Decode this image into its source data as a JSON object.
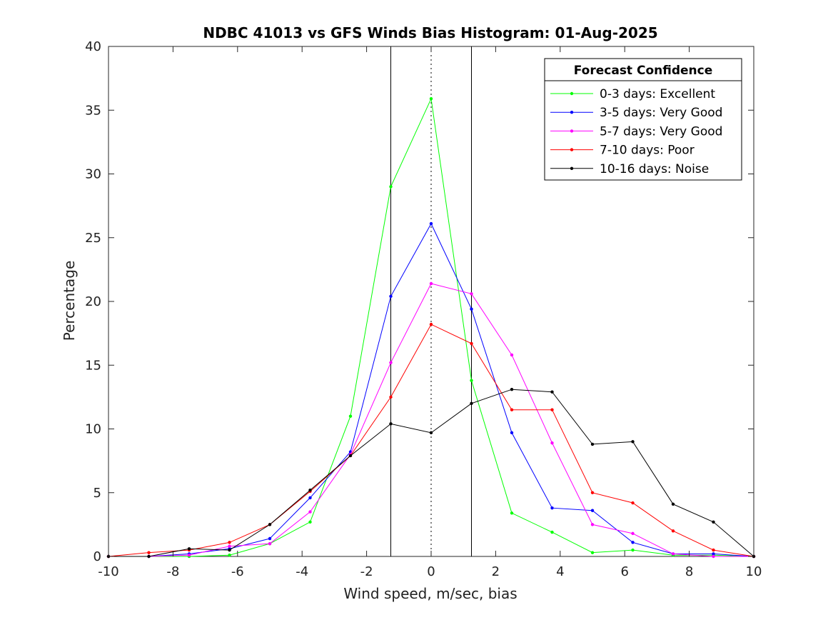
{
  "chart_data": {
    "type": "line",
    "title": "NDBC 41013 vs GFS Winds Bias Histogram: 01-Aug-2025",
    "xlabel": "Wind speed, m/sec, bias",
    "ylabel": "Percentage",
    "xlim": [
      -10,
      10
    ],
    "ylim": [
      0,
      40
    ],
    "xticks": [
      -10,
      -8,
      -6,
      -4,
      -2,
      0,
      2,
      4,
      6,
      8,
      10
    ],
    "yticks": [
      0,
      5,
      10,
      15,
      20,
      25,
      30,
      35,
      40
    ],
    "grid": false,
    "legend": {
      "title": "Forecast Confidence",
      "placement": "top-right"
    },
    "reference_lines": [
      {
        "x": -1.25,
        "style": "solid"
      },
      {
        "x": 0,
        "style": "dotted"
      },
      {
        "x": 1.25,
        "style": "solid"
      }
    ],
    "x": [
      -10,
      -8.75,
      -7.5,
      -6.25,
      -5,
      -3.75,
      -2.5,
      -1.25,
      0,
      1.25,
      2.5,
      3.75,
      5,
      6.25,
      7.5,
      8.75,
      10
    ],
    "series": [
      {
        "name": "0-3 days: Excellent",
        "color": "#00ff00",
        "values": [
          0,
          0,
          0,
          0.1,
          1.0,
          2.7,
          11.0,
          29.0,
          35.9,
          13.8,
          3.4,
          1.9,
          0.3,
          0.5,
          0.1,
          0.1,
          0
        ]
      },
      {
        "name": "3-5 days: Very Good",
        "color": "#0000ff",
        "values": [
          0,
          0,
          0.2,
          0.6,
          1.4,
          4.6,
          8.2,
          20.4,
          26.1,
          19.4,
          9.7,
          3.8,
          3.6,
          1.1,
          0.2,
          0.2,
          0
        ]
      },
      {
        "name": "5-7 days: Very Good",
        "color": "#ff00ff",
        "values": [
          0,
          0,
          0.1,
          0.8,
          1.0,
          3.5,
          8.0,
          15.2,
          21.4,
          20.6,
          15.8,
          8.9,
          2.5,
          1.8,
          0.2,
          0,
          0
        ]
      },
      {
        "name": "7-10 days: Poor",
        "color": "#ff0000",
        "values": [
          0,
          0.3,
          0.5,
          1.1,
          2.5,
          5.1,
          7.9,
          12.5,
          18.2,
          16.7,
          11.5,
          11.5,
          5.0,
          4.2,
          2.0,
          0.5,
          0
        ]
      },
      {
        "name": "10-16 days: Noise",
        "color": "#000000",
        "values": [
          0,
          0,
          0.6,
          0.5,
          2.5,
          5.2,
          7.9,
          10.4,
          9.7,
          12.0,
          13.1,
          12.9,
          8.8,
          9.0,
          4.1,
          2.7,
          0
        ]
      }
    ]
  }
}
